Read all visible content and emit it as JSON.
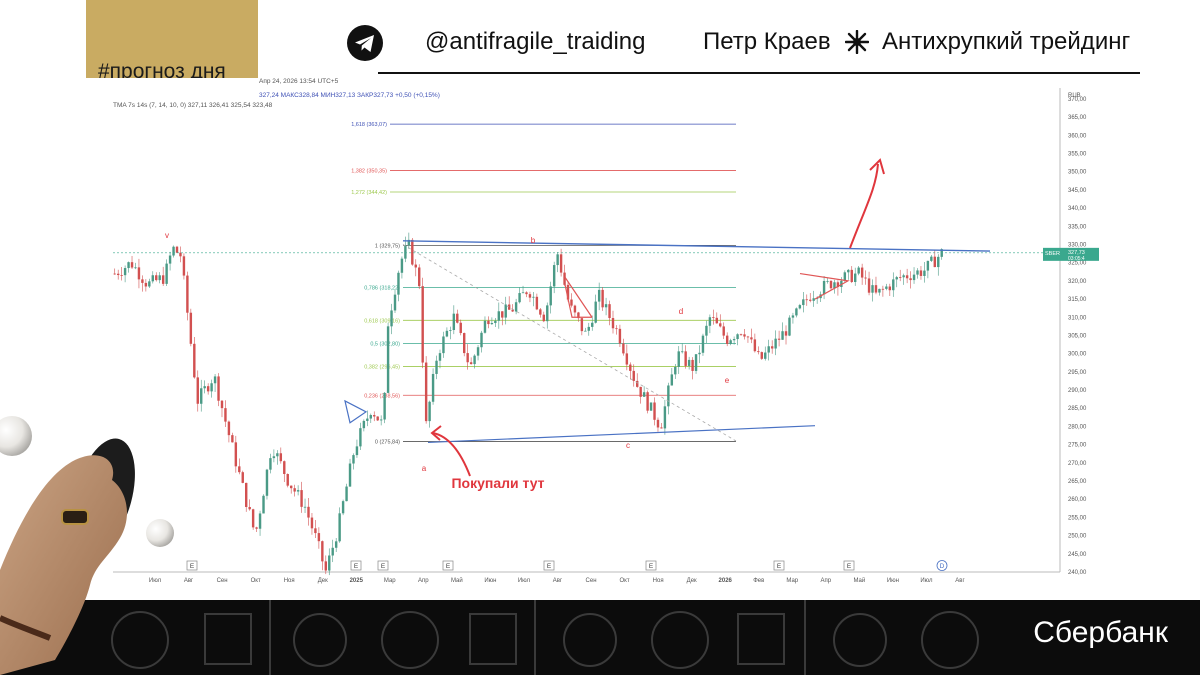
{
  "header": {
    "tag": "#прогноз дня",
    "handle": "@antifragile_traiding",
    "author": "Петр Краев",
    "brand": "Антихрупкий трейдинг",
    "icons": [
      "telegram-icon",
      "star-burst-icon"
    ]
  },
  "footer": {
    "logo_text": "Сбербанк"
  },
  "colors": {
    "tag_bg": "#c9ab62",
    "candle_up": "#4a9a86",
    "candle_down": "#d25050",
    "fib_red": "#e05656",
    "fib_blue": "#3f51b5",
    "fib_green": "#9ec94f",
    "fib_teal": "#3aa88e",
    "trend": "#4a72c4",
    "annotation": "#e0363d"
  },
  "chart_data": {
    "type": "candlestick",
    "info_line_1": "Апр 24, 2026 13:54 UTC+5",
    "info_line_2": "327,24  МАКС328,84  МИН327,13  ЗАКР327,73  +0,50 (+0,15%)",
    "info_line_3": "TMA 7s 14s (7, 14, 10, 0)  327,11  326,41  325,54  323,48",
    "currency": "RUB",
    "ylim": [
      240,
      373
    ],
    "y_ticks": [
      "240,00",
      "245,00",
      "250,00",
      "255,00",
      "260,00",
      "265,00",
      "270,00",
      "275,00",
      "280,00",
      "285,00",
      "290,00",
      "295,00",
      "300,00",
      "305,00",
      "310,00",
      "315,00",
      "320,00",
      "325,00",
      "330,00",
      "335,00",
      "340,00",
      "345,00",
      "350,00",
      "355,00",
      "360,00",
      "365,00",
      "370,00"
    ],
    "x_ticks": [
      "Июл",
      "Авг",
      "Сен",
      "Окт",
      "Ноя",
      "Дек",
      "2025",
      "Мар",
      "Апр",
      "Май",
      "Июн",
      "Июл",
      "Авг",
      "Сен",
      "Окт",
      "Ноя",
      "Дек",
      "2026",
      "Фев",
      "Мар",
      "Апр",
      "Май",
      "Июн",
      "Июл",
      "Авг"
    ],
    "last_price": {
      "ticker": "SBER",
      "value": "327,73",
      "timer": "03:05:4"
    },
    "fib_levels": [
      {
        "label": "1,618 (363,07)",
        "value": 363.07
      },
      {
        "label": "1,382 (350,35)",
        "value": 350.35
      },
      {
        "label": "1,272 (344,42)",
        "value": 344.42
      },
      {
        "label": "1 (329,75)",
        "value": 329.75
      },
      {
        "label": "0,786 (318,22)",
        "value": 318.22
      },
      {
        "label": "0,618 (309,16)",
        "value": 309.16
      },
      {
        "label": "0,5 (302,80)",
        "value": 302.8
      },
      {
        "label": "0,382 (296,45)",
        "value": 296.45
      },
      {
        "label": "0,236 (288,56)",
        "value": 288.56
      },
      {
        "label": "0 (275,84)",
        "value": 275.84
      }
    ],
    "wave_labels": [
      "v",
      "b",
      "d",
      "c",
      "e",
      "a"
    ],
    "event_markers": [
      "E",
      "E",
      "E",
      "E",
      "E",
      "E",
      "E",
      "E"
    ],
    "dividend_marker": "D",
    "annotation": "Покупали тут",
    "price_path": [
      {
        "x": 0,
        "y": 322
      },
      {
        "x": 0.02,
        "y": 325
      },
      {
        "x": 0.04,
        "y": 319
      },
      {
        "x": 0.06,
        "y": 321
      },
      {
        "x": 0.07,
        "y": 329
      },
      {
        "x": 0.08,
        "y": 327
      },
      {
        "x": 0.1,
        "y": 287
      },
      {
        "x": 0.12,
        "y": 294
      },
      {
        "x": 0.14,
        "y": 276
      },
      {
        "x": 0.17,
        "y": 250
      },
      {
        "x": 0.19,
        "y": 275
      },
      {
        "x": 0.21,
        "y": 265
      },
      {
        "x": 0.23,
        "y": 258
      },
      {
        "x": 0.245,
        "y": 248
      },
      {
        "x": 0.255,
        "y": 240
      },
      {
        "x": 0.27,
        "y": 252
      },
      {
        "x": 0.29,
        "y": 274
      },
      {
        "x": 0.31,
        "y": 285
      },
      {
        "x": 0.325,
        "y": 280
      },
      {
        "x": 0.33,
        "y": 308
      },
      {
        "x": 0.345,
        "y": 325
      },
      {
        "x": 0.355,
        "y": 330
      },
      {
        "x": 0.37,
        "y": 318
      },
      {
        "x": 0.375,
        "y": 278
      },
      {
        "x": 0.39,
        "y": 300
      },
      {
        "x": 0.41,
        "y": 310
      },
      {
        "x": 0.43,
        "y": 296
      },
      {
        "x": 0.45,
        "y": 310
      },
      {
        "x": 0.48,
        "y": 312
      },
      {
        "x": 0.5,
        "y": 318
      },
      {
        "x": 0.52,
        "y": 310
      },
      {
        "x": 0.535,
        "y": 328
      },
      {
        "x": 0.55,
        "y": 313
      },
      {
        "x": 0.57,
        "y": 305
      },
      {
        "x": 0.585,
        "y": 316
      },
      {
        "x": 0.61,
        "y": 305
      },
      {
        "x": 0.63,
        "y": 292
      },
      {
        "x": 0.66,
        "y": 280
      },
      {
        "x": 0.68,
        "y": 300
      },
      {
        "x": 0.7,
        "y": 296
      },
      {
        "x": 0.72,
        "y": 310
      },
      {
        "x": 0.74,
        "y": 304
      },
      {
        "x": 0.76,
        "y": 307
      },
      {
        "x": 0.78,
        "y": 298
      },
      {
        "x": 0.81,
        "y": 306
      },
      {
        "x": 0.84,
        "y": 316
      },
      {
        "x": 0.87,
        "y": 320
      },
      {
        "x": 0.9,
        "y": 322
      },
      {
        "x": 0.92,
        "y": 316
      },
      {
        "x": 0.95,
        "y": 321
      },
      {
        "x": 0.98,
        "y": 323
      },
      {
        "x": 1,
        "y": 327.7
      }
    ]
  }
}
